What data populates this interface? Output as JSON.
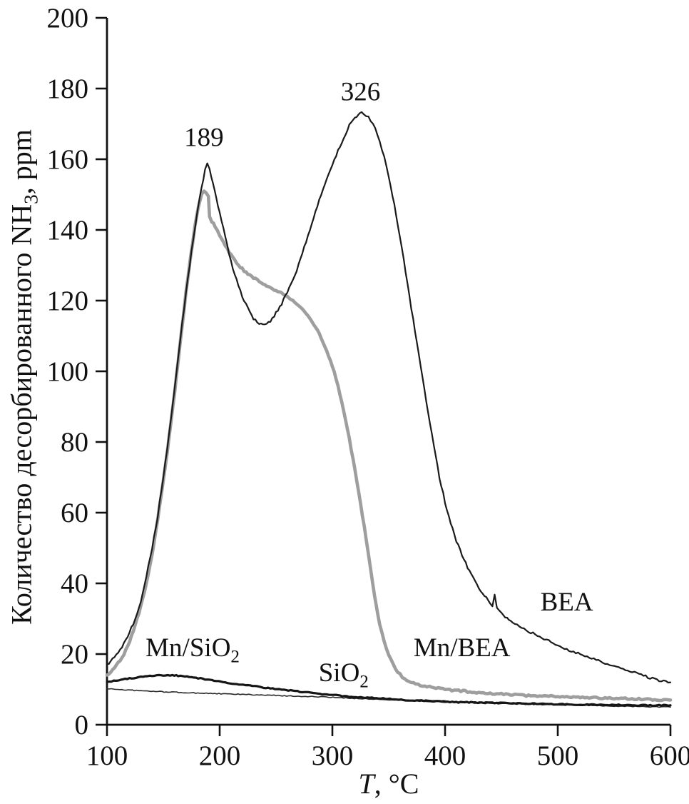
{
  "chart_data": {
    "type": "line",
    "title": "",
    "xlabel": "T, °C",
    "ylabel": "Количество десорбированного NH₃, ppm",
    "xlabel_parts": {
      "italic": "T",
      "rest": ", °C"
    },
    "ylabel_parts": {
      "pre": "Количество десорбированного NH",
      "sub": "3",
      "post": ", ppm"
    },
    "xlim": [
      100,
      600
    ],
    "ylim": [
      0,
      200
    ],
    "xticks": [
      100,
      200,
      300,
      400,
      500,
      600
    ],
    "yticks": [
      0,
      20,
      40,
      60,
      80,
      100,
      120,
      140,
      160,
      180,
      200
    ],
    "grid": false,
    "legend_position": "inline-labels",
    "axis_color": "#111111",
    "annotations": [
      {
        "text": "189",
        "x": 186,
        "y": 166
      },
      {
        "text": "326",
        "x": 325,
        "y": 179
      }
    ],
    "series_labels": [
      {
        "pre": "Mn/SiO",
        "sub": "2",
        "post": "",
        "x": 176,
        "y": 21
      },
      {
        "pre": "SiO",
        "sub": "2",
        "post": "",
        "x": 310,
        "y": 14
      },
      {
        "pre": "Mn/BEA",
        "sub": "",
        "post": "",
        "x": 415,
        "y": 21
      },
      {
        "pre": "BEA",
        "sub": "",
        "post": "",
        "x": 508,
        "y": 34
      }
    ],
    "series": [
      {
        "name": "BEA",
        "color": "#1a1a1a",
        "width": 2.2,
        "noise": 0.7,
        "points": [
          [
            100,
            17
          ],
          [
            105,
            18.5
          ],
          [
            110,
            20.5
          ],
          [
            115,
            23
          ],
          [
            120,
            26
          ],
          [
            125,
            30
          ],
          [
            130,
            35
          ],
          [
            135,
            42
          ],
          [
            140,
            50
          ],
          [
            145,
            59
          ],
          [
            150,
            70
          ],
          [
            155,
            82
          ],
          [
            160,
            95
          ],
          [
            165,
            109
          ],
          [
            170,
            122
          ],
          [
            175,
            134
          ],
          [
            180,
            145
          ],
          [
            184,
            152
          ],
          [
            187,
            157
          ],
          [
            189,
            159
          ],
          [
            191,
            157.5
          ],
          [
            194,
            153
          ],
          [
            197,
            149
          ],
          [
            200,
            145
          ],
          [
            205,
            138
          ],
          [
            210,
            131
          ],
          [
            215,
            126
          ],
          [
            220,
            121
          ],
          [
            225,
            118
          ],
          [
            230,
            115
          ],
          [
            235,
            113.5
          ],
          [
            240,
            113
          ],
          [
            245,
            114
          ],
          [
            250,
            116.5
          ],
          [
            255,
            119
          ],
          [
            260,
            122.5
          ],
          [
            265,
            126
          ],
          [
            270,
            130
          ],
          [
            275,
            135
          ],
          [
            280,
            140
          ],
          [
            285,
            145
          ],
          [
            290,
            150
          ],
          [
            295,
            154.5
          ],
          [
            300,
            158.5
          ],
          [
            305,
            162.5
          ],
          [
            310,
            166
          ],
          [
            315,
            169.5
          ],
          [
            320,
            171.5
          ],
          [
            323,
            172.5
          ],
          [
            326,
            173.5
          ],
          [
            330,
            172.5
          ],
          [
            334,
            171
          ],
          [
            338,
            168.5
          ],
          [
            342,
            165
          ],
          [
            346,
            160.5
          ],
          [
            350,
            155
          ],
          [
            355,
            147
          ],
          [
            360,
            138
          ],
          [
            365,
            128
          ],
          [
            370,
            118
          ],
          [
            375,
            108
          ],
          [
            380,
            98
          ],
          [
            385,
            88
          ],
          [
            390,
            79
          ],
          [
            395,
            70
          ],
          [
            400,
            63
          ],
          [
            405,
            57
          ],
          [
            410,
            52
          ],
          [
            415,
            48
          ],
          [
            420,
            44.5
          ],
          [
            425,
            41.5
          ],
          [
            430,
            38.5
          ],
          [
            435,
            36.5
          ],
          [
            440,
            34.5
          ],
          [
            442,
            33.5
          ],
          [
            444,
            36.5
          ],
          [
            446,
            33
          ],
          [
            450,
            31.5
          ],
          [
            455,
            30
          ],
          [
            460,
            29
          ],
          [
            470,
            27
          ],
          [
            480,
            25.5
          ],
          [
            490,
            24
          ],
          [
            500,
            22.5
          ],
          [
            510,
            21
          ],
          [
            520,
            20
          ],
          [
            530,
            19
          ],
          [
            540,
            17.5
          ],
          [
            550,
            16.5
          ],
          [
            560,
            15.5
          ],
          [
            570,
            14.5
          ],
          [
            580,
            13.5
          ],
          [
            590,
            12.5
          ],
          [
            600,
            12
          ]
        ]
      },
      {
        "name": "Mn/BEA",
        "color": "#9e9e9e",
        "width": 4.6,
        "noise": 0.5,
        "points": [
          [
            100,
            14
          ],
          [
            105,
            15.5
          ],
          [
            110,
            17.5
          ],
          [
            115,
            20
          ],
          [
            120,
            23.5
          ],
          [
            125,
            28
          ],
          [
            130,
            33.5
          ],
          [
            135,
            40
          ],
          [
            140,
            48
          ],
          [
            145,
            58
          ],
          [
            150,
            69
          ],
          [
            155,
            81
          ],
          [
            160,
            94
          ],
          [
            165,
            108
          ],
          [
            170,
            122
          ],
          [
            174,
            132
          ],
          [
            178,
            141
          ],
          [
            181,
            146.5
          ],
          [
            184,
            150
          ],
          [
            186,
            151
          ],
          [
            188,
            150.5
          ],
          [
            190,
            149.5
          ],
          [
            191,
            144
          ],
          [
            193,
            142.5
          ],
          [
            196,
            141
          ],
          [
            200,
            138.5
          ],
          [
            205,
            135.5
          ],
          [
            210,
            133
          ],
          [
            215,
            130.5
          ],
          [
            220,
            129
          ],
          [
            225,
            127.5
          ],
          [
            230,
            126.5
          ],
          [
            235,
            125.5
          ],
          [
            240,
            124.5
          ],
          [
            245,
            123.5
          ],
          [
            250,
            123
          ],
          [
            255,
            122
          ],
          [
            260,
            121
          ],
          [
            265,
            120
          ],
          [
            270,
            118.5
          ],
          [
            275,
            117
          ],
          [
            280,
            115
          ],
          [
            285,
            112.5
          ],
          [
            290,
            109.5
          ],
          [
            295,
            106
          ],
          [
            300,
            101.5
          ],
          [
            305,
            96
          ],
          [
            310,
            89
          ],
          [
            315,
            81
          ],
          [
            320,
            72
          ],
          [
            325,
            62.5
          ],
          [
            330,
            52.5
          ],
          [
            333,
            46
          ],
          [
            336,
            39.5
          ],
          [
            339,
            33.5
          ],
          [
            342,
            28.5
          ],
          [
            344,
            26
          ],
          [
            346,
            23.5
          ],
          [
            350,
            19.5
          ],
          [
            354,
            17
          ],
          [
            358,
            15
          ],
          [
            362,
            13.5
          ],
          [
            366,
            12.5
          ],
          [
            370,
            12
          ],
          [
            380,
            11
          ],
          [
            390,
            10.5
          ],
          [
            400,
            10
          ],
          [
            410,
            9.7
          ],
          [
            420,
            9.4
          ],
          [
            430,
            9.1
          ],
          [
            440,
            8.9
          ],
          [
            450,
            8.7
          ],
          [
            460,
            8.5
          ],
          [
            470,
            8.3
          ],
          [
            480,
            8.2
          ],
          [
            490,
            8.1
          ],
          [
            500,
            8
          ],
          [
            520,
            7.8
          ],
          [
            540,
            7.6
          ],
          [
            560,
            7.4
          ],
          [
            580,
            7.2
          ],
          [
            600,
            7
          ]
        ]
      },
      {
        "name": "Mn/SiO2",
        "color": "#151515",
        "width": 3.2,
        "noise": 0.3,
        "points": [
          [
            100,
            12
          ],
          [
            110,
            12.6
          ],
          [
            120,
            13.1
          ],
          [
            130,
            13.5
          ],
          [
            140,
            13.8
          ],
          [
            150,
            14
          ],
          [
            158,
            14
          ],
          [
            165,
            13.8
          ],
          [
            175,
            13.4
          ],
          [
            185,
            13
          ],
          [
            195,
            12.5
          ],
          [
            205,
            12
          ],
          [
            215,
            11.5
          ],
          [
            225,
            11.1
          ],
          [
            235,
            10.7
          ],
          [
            245,
            10.3
          ],
          [
            255,
            9.9
          ],
          [
            265,
            9.6
          ],
          [
            275,
            9.2
          ],
          [
            285,
            8.9
          ],
          [
            295,
            8.6
          ],
          [
            305,
            8.3
          ],
          [
            315,
            8
          ],
          [
            325,
            7.8
          ],
          [
            335,
            7.6
          ],
          [
            345,
            7.4
          ],
          [
            355,
            7.2
          ],
          [
            365,
            7
          ],
          [
            375,
            6.9
          ],
          [
            385,
            6.7
          ],
          [
            395,
            6.6
          ],
          [
            410,
            6.4
          ],
          [
            425,
            6.3
          ],
          [
            440,
            6.2
          ],
          [
            455,
            6.1
          ],
          [
            470,
            6
          ],
          [
            485,
            5.9
          ],
          [
            500,
            5.8
          ],
          [
            520,
            5.7
          ],
          [
            540,
            5.6
          ],
          [
            560,
            5.6
          ],
          [
            580,
            5.5
          ],
          [
            600,
            5.5
          ]
        ]
      },
      {
        "name": "SiO2",
        "color": "#2a2a2a",
        "width": 1.6,
        "noise": 0.25,
        "points": [
          [
            100,
            10.2
          ],
          [
            115,
            9.9
          ],
          [
            130,
            9.6
          ],
          [
            145,
            9.4
          ],
          [
            160,
            9.2
          ],
          [
            175,
            9
          ],
          [
            190,
            8.9
          ],
          [
            205,
            8.7
          ],
          [
            220,
            8.6
          ],
          [
            235,
            8.4
          ],
          [
            250,
            8.3
          ],
          [
            265,
            8.1
          ],
          [
            280,
            8
          ],
          [
            295,
            7.8
          ],
          [
            310,
            7.6
          ],
          [
            325,
            7.4
          ],
          [
            340,
            7.2
          ],
          [
            355,
            7
          ],
          [
            370,
            6.8
          ],
          [
            385,
            6.6
          ],
          [
            400,
            6.4
          ],
          [
            415,
            6.3
          ],
          [
            430,
            6.1
          ],
          [
            445,
            6
          ],
          [
            460,
            5.9
          ],
          [
            475,
            5.8
          ],
          [
            490,
            5.7
          ],
          [
            505,
            5.6
          ],
          [
            520,
            5.5
          ],
          [
            535,
            5.4
          ],
          [
            550,
            5.3
          ],
          [
            565,
            5.2
          ],
          [
            580,
            5.1
          ],
          [
            600,
            5
          ]
        ]
      }
    ]
  }
}
